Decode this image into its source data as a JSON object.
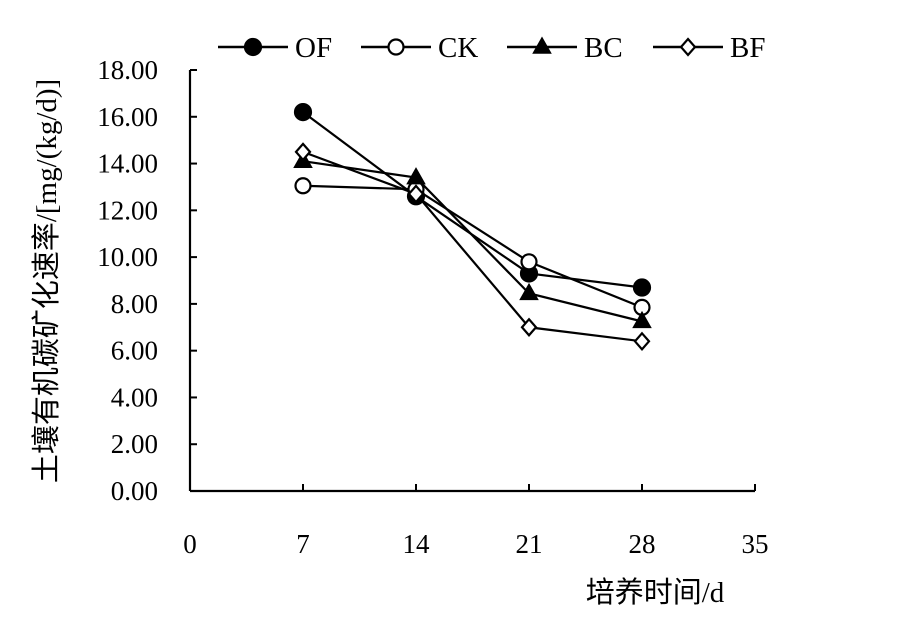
{
  "chart_data": {
    "type": "line",
    "title": "",
    "xlabel": "培养时间/d",
    "ylabel": "土壤有机碳矿化速率/[mg/(kg/d)]",
    "xlim": [
      0,
      35
    ],
    "ylim": [
      0,
      18
    ],
    "x_ticks": [
      "0",
      "7",
      "14",
      "21",
      "28",
      "35"
    ],
    "y_ticks": [
      "0.00",
      "2.00",
      "4.00",
      "6.00",
      "8.00",
      "10.00",
      "12.00",
      "14.00",
      "16.00",
      "18.00"
    ],
    "x": [
      7,
      14,
      21,
      28
    ],
    "grid": false,
    "legend_position": "top",
    "series": [
      {
        "name": "OF",
        "marker": "circle-filled",
        "values": [
          16.2,
          12.6,
          9.3,
          8.7
        ]
      },
      {
        "name": "CK",
        "marker": "circle-open",
        "values": [
          13.05,
          12.9,
          9.8,
          7.85
        ]
      },
      {
        "name": "BC",
        "marker": "triangle-filled",
        "values": [
          14.1,
          13.4,
          8.45,
          7.25
        ]
      },
      {
        "name": "BF",
        "marker": "diamond-open",
        "values": [
          14.5,
          12.7,
          7.0,
          6.4
        ]
      }
    ]
  }
}
